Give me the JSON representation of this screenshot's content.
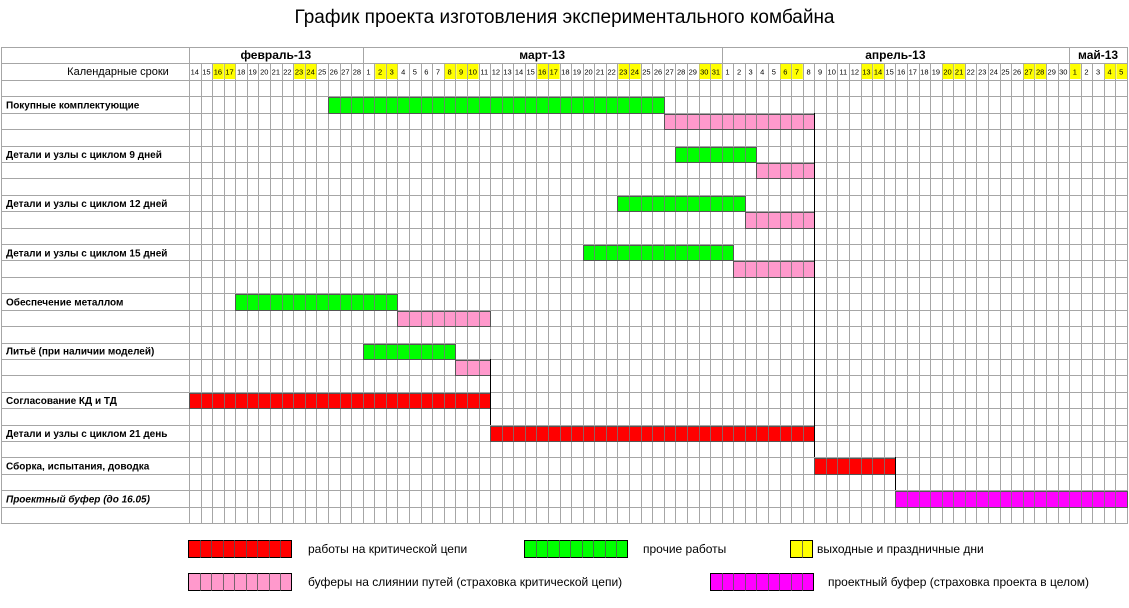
{
  "title": "График проекта изготовления экспериментального комбайна",
  "chart_data": {
    "type": "gantt",
    "header_label": "Календарные сроки",
    "months": [
      {
        "label": "февраль-13",
        "days": [
          14,
          15,
          16,
          17,
          18,
          19,
          20,
          21,
          22,
          23,
          24,
          25,
          26,
          27,
          28
        ]
      },
      {
        "label": "март-13",
        "days": [
          1,
          2,
          3,
          4,
          5,
          6,
          7,
          8,
          9,
          10,
          11,
          12,
          13,
          14,
          15,
          16,
          17,
          18,
          19,
          20,
          21,
          22,
          23,
          24,
          25,
          26,
          27,
          28,
          29,
          30,
          31
        ]
      },
      {
        "label": "апрель-13",
        "days": [
          1,
          2,
          3,
          4,
          5,
          6,
          7,
          8,
          9,
          10,
          11,
          12,
          13,
          14,
          15,
          16,
          17,
          18,
          19,
          20,
          21,
          22,
          23,
          24,
          25,
          26,
          27,
          28,
          29,
          30
        ]
      },
      {
        "label": "май-13",
        "days": [
          1,
          2,
          3,
          4,
          5
        ]
      }
    ],
    "holidays": [
      "2013-02-16",
      "2013-02-17",
      "2013-02-23",
      "2013-02-24",
      "2013-03-02",
      "2013-03-03",
      "2013-03-08",
      "2013-03-09",
      "2013-03-10",
      "2013-03-16",
      "2013-03-17",
      "2013-03-23",
      "2013-03-24",
      "2013-03-30",
      "2013-03-31",
      "2013-04-06",
      "2013-04-07",
      "2013-04-13",
      "2013-04-14",
      "2013-04-20",
      "2013-04-21",
      "2013-04-27",
      "2013-04-28",
      "2013-05-01",
      "2013-05-04",
      "2013-05-05"
    ],
    "row_labels": [
      {
        "label": "Покупные комплектующие",
        "italic": false
      },
      {
        "label": "",
        "italic": false
      },
      {
        "label": "Детали и узлы с циклом 9 дней",
        "italic": false
      },
      {
        "label": "",
        "italic": false
      },
      {
        "label": "Детали и узлы с циклом 12 дней",
        "italic": false
      },
      {
        "label": "",
        "italic": false
      },
      {
        "label": "Детали и узлы с циклом 15 дней",
        "italic": false
      },
      {
        "label": "",
        "italic": false
      },
      {
        "label": "Обеспечение металлом",
        "italic": false
      },
      {
        "label": "",
        "italic": false
      },
      {
        "label": "Литьё (при наличии моделей)",
        "italic": false
      },
      {
        "label": "",
        "italic": false
      },
      {
        "label": "Согласование КД и ТД",
        "italic": false
      },
      {
        "label": "Детали и узлы с циклом 21 день",
        "italic": false
      },
      {
        "label": "Сборка, испытания, доводка",
        "italic": false
      },
      {
        "label": "Проектный буфер (до 16.05)",
        "italic": true
      }
    ],
    "tasks": [
      {
        "row": 0,
        "start": "2013-02-26",
        "end": "2013-03-26",
        "kind": "other"
      },
      {
        "row": 1,
        "start": "2013-03-27",
        "end": "2013-04-08",
        "kind": "buffer"
      },
      {
        "row": 2,
        "start": "2013-03-28",
        "end": "2013-04-03",
        "kind": "other"
      },
      {
        "row": 3,
        "start": "2013-04-04",
        "end": "2013-04-08",
        "kind": "buffer"
      },
      {
        "row": 4,
        "start": "2013-03-23",
        "end": "2013-04-02",
        "kind": "other"
      },
      {
        "row": 5,
        "start": "2013-04-03",
        "end": "2013-04-08",
        "kind": "buffer"
      },
      {
        "row": 6,
        "start": "2013-03-20",
        "end": "2013-04-01",
        "kind": "other"
      },
      {
        "row": 7,
        "start": "2013-04-02",
        "end": "2013-04-08",
        "kind": "buffer"
      },
      {
        "row": 8,
        "start": "2013-02-18",
        "end": "2013-03-03",
        "kind": "other"
      },
      {
        "row": 9,
        "start": "2013-03-04",
        "end": "2013-03-11",
        "kind": "buffer"
      },
      {
        "row": 10,
        "start": "2013-03-01",
        "end": "2013-03-08",
        "kind": "other"
      },
      {
        "row": 11,
        "start": "2013-03-09",
        "end": "2013-03-11",
        "kind": "buffer"
      },
      {
        "row": 12,
        "start": "2013-02-14",
        "end": "2013-03-11",
        "kind": "critical"
      },
      {
        "row": 13,
        "start": "2013-03-12",
        "end": "2013-04-08",
        "kind": "critical"
      },
      {
        "row": 14,
        "start": "2013-04-09",
        "end": "2013-04-15",
        "kind": "critical"
      },
      {
        "row": 15,
        "start": "2013-04-16",
        "end": "2013-05-05",
        "kind": "project_buffer"
      }
    ],
    "colors": {
      "critical": "#ff0000",
      "other": "#00ff00",
      "buffer": "#ff99cc",
      "project_buffer": "#ff00ff",
      "holiday": "#ffff00",
      "grid": "#a6a6a6"
    },
    "legend": [
      {
        "kind": "critical",
        "label": "работы на критической цепи",
        "cells": 9
      },
      {
        "kind": "other",
        "label": "прочие работы",
        "cells": 9
      },
      {
        "kind": "holiday",
        "label": "выходные и праздничные дни",
        "cells": 2
      },
      {
        "kind": "buffer",
        "label": "буферы на слиянии путей (страховка критической цепи)",
        "cells": 9
      },
      {
        "kind": "project_buffer",
        "label": "проектный буфер (страховка проекта в целом)",
        "cells": 9
      }
    ]
  }
}
